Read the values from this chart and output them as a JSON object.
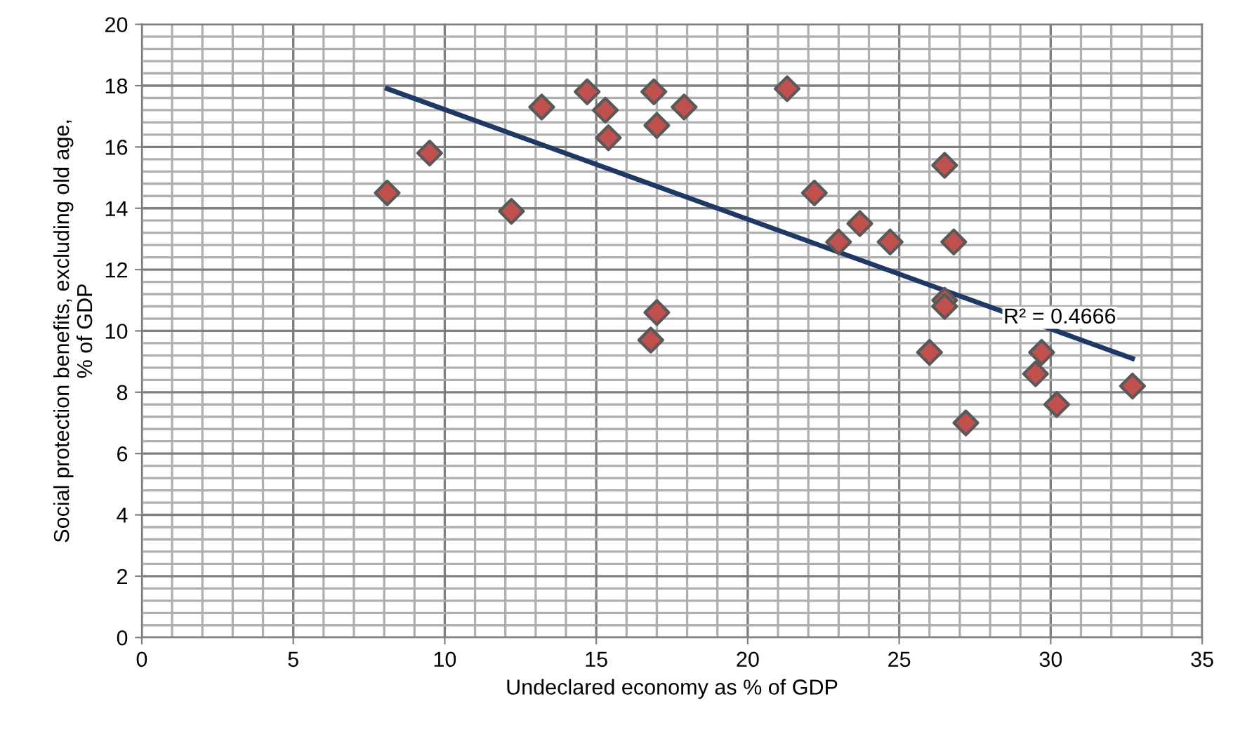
{
  "chart_data": {
    "type": "scatter",
    "xlabel": "Undeclared economy as % of GDP",
    "ylabel": "Social protection benefits, excluding old age,\n% of GDP",
    "xlim": [
      0,
      35
    ],
    "xticks": [
      0,
      5,
      10,
      15,
      20,
      25,
      30,
      35
    ],
    "ylim": [
      0,
      20
    ],
    "yticks": [
      0,
      2,
      4,
      6,
      8,
      10,
      12,
      14,
      16,
      18,
      20
    ],
    "grid": true,
    "series": [
      {
        "marker": "diamond",
        "color": "#c0504d",
        "x": [
          8.1,
          9.5,
          12.2,
          13.2,
          14.7,
          15.3,
          15.4,
          16.9,
          17.0,
          17.9,
          16.8,
          17.0,
          21.3,
          22.2,
          23.0,
          23.7,
          24.7,
          26.5,
          26.8,
          26.5,
          26.5,
          26.0,
          27.2,
          29.7,
          29.5,
          30.2,
          32.7
        ],
        "values": [
          14.5,
          15.8,
          13.9,
          17.3,
          17.8,
          17.2,
          16.3,
          17.8,
          16.7,
          17.3,
          9.7,
          10.6,
          17.9,
          14.5,
          12.9,
          13.5,
          12.9,
          15.4,
          12.9,
          11.0,
          10.8,
          9.3,
          7.0,
          9.3,
          8.6,
          7.6,
          8.2
        ]
      },
      {
        "type": "line",
        "color": "#1f3864",
        "x": [
          8.1,
          32.7
        ],
        "values": [
          17.9,
          9.1
        ]
      }
    ],
    "annotations": [
      {
        "text": "R² = 0.4666",
        "x": 30.3,
        "y": 10.1
      }
    ]
  }
}
